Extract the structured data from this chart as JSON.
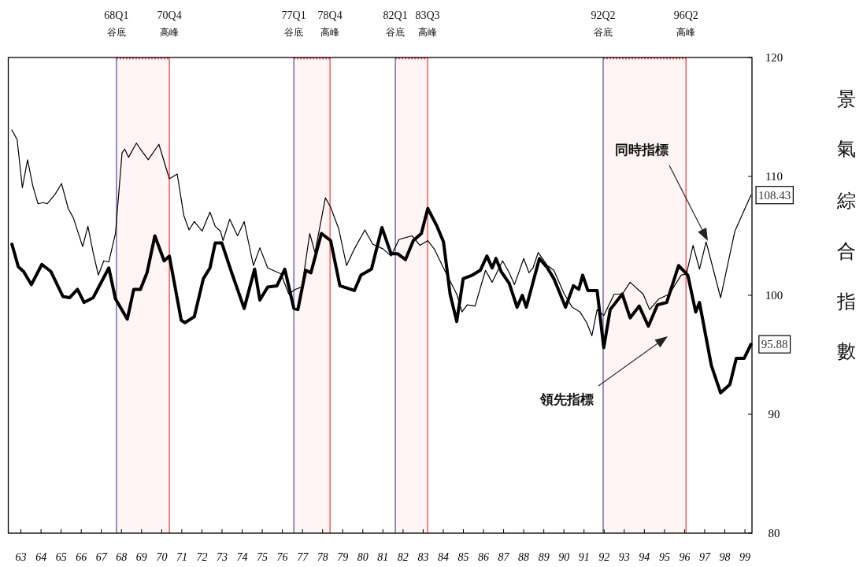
{
  "chart_data": {
    "type": "line",
    "ylabel": "景氣綜合指數",
    "xlim": [
      62.87,
      99.85
    ],
    "ylim": [
      80,
      120
    ],
    "xticks": [
      {
        "value": 63.5,
        "label": "63"
      },
      {
        "value": 64.5,
        "label": "64"
      },
      {
        "value": 65.5,
        "label": "65"
      },
      {
        "value": 66.5,
        "label": "66"
      },
      {
        "value": 67.5,
        "label": "67"
      },
      {
        "value": 68.5,
        "label": "68"
      },
      {
        "value": 69.5,
        "label": "69"
      },
      {
        "value": 70.5,
        "label": "70"
      },
      {
        "value": 71.5,
        "label": "71"
      },
      {
        "value": 72.5,
        "label": "72"
      },
      {
        "value": 73.5,
        "label": "73"
      },
      {
        "value": 74.5,
        "label": "74"
      },
      {
        "value": 75.5,
        "label": "75"
      },
      {
        "value": 76.5,
        "label": "76"
      },
      {
        "value": 77.5,
        "label": "77"
      },
      {
        "value": 78.5,
        "label": "78"
      },
      {
        "value": 79.5,
        "label": "79"
      },
      {
        "value": 80.5,
        "label": "80"
      },
      {
        "value": 81.5,
        "label": "81"
      },
      {
        "value": 82.5,
        "label": "82"
      },
      {
        "value": 83.5,
        "label": "83"
      },
      {
        "value": 84.5,
        "label": "84"
      },
      {
        "value": 85.5,
        "label": "85"
      },
      {
        "value": 86.5,
        "label": "86"
      },
      {
        "value": 87.5,
        "label": "87"
      },
      {
        "value": 88.5,
        "label": "88"
      },
      {
        "value": 89.5,
        "label": "89"
      },
      {
        "value": 90.5,
        "label": "90"
      },
      {
        "value": 91.5,
        "label": "91"
      },
      {
        "value": 92.5,
        "label": "92"
      },
      {
        "value": 93.5,
        "label": "93"
      },
      {
        "value": 94.5,
        "label": "94"
      },
      {
        "value": 95.5,
        "label": "95"
      },
      {
        "value": 96.5,
        "label": "96"
      },
      {
        "value": 97.5,
        "label": "97"
      },
      {
        "value": 98.5,
        "label": "98"
      },
      {
        "value": 99.5,
        "label": "99"
      }
    ],
    "yticks": [
      80,
      90,
      100,
      110,
      120
    ],
    "series": [
      {
        "color": "#000000",
        "x": [
          63.05,
          63.37,
          63.63,
          64.02,
          64.54,
          64.99,
          65.59,
          65.92,
          66.31,
          66.64,
          67.09,
          67.87,
          68.2,
          68.79,
          69.11,
          69.44,
          69.77,
          70.16,
          70.62,
          70.88,
          71.47,
          71.66,
          72.12,
          72.57,
          72.9,
          73.16,
          73.49,
          73.94,
          74.6,
          75.12,
          75.38,
          75.77,
          76.23,
          76.62,
          77.07,
          77.27,
          77.66,
          77.92,
          78.44,
          78.9,
          79.36,
          80.08,
          80.41,
          80.93,
          81.45,
          81.9,
          82.23,
          82.62,
          83.01,
          83.41,
          83.73,
          84.19,
          84.51,
          84.84,
          85.17,
          85.49,
          85.95,
          86.34,
          86.67,
          86.93,
          87.12,
          87.38,
          87.78,
          88.17,
          88.43,
          88.63,
          89.28,
          89.68,
          90.0,
          90.58,
          90.97,
          91.24,
          91.43,
          91.69,
          92.15,
          92.48,
          92.8,
          93.4,
          93.79,
          94.24,
          94.7,
          95.15,
          95.61,
          96.2,
          96.66,
          97.05,
          97.24,
          97.83,
          98.29,
          98.75,
          99.07,
          99.46,
          99.8
        ],
        "values": [
          104.3,
          102.4,
          102.0,
          100.9,
          102.6,
          102.0,
          99.9,
          99.8,
          100.5,
          99.4,
          99.8,
          102.3,
          99.7,
          98.0,
          100.5,
          100.5,
          101.9,
          105.0,
          102.9,
          103.3,
          97.9,
          97.7,
          98.2,
          101.4,
          102.3,
          104.4,
          104.4,
          102.1,
          98.9,
          102.2,
          99.6,
          100.7,
          100.8,
          102.2,
          98.9,
          98.8,
          102.1,
          101.9,
          105.2,
          104.6,
          100.8,
          100.4,
          101.7,
          102.2,
          105.7,
          103.5,
          103.5,
          103.0,
          104.6,
          105.2,
          107.3,
          105.8,
          104.5,
          100.1,
          97.8,
          101.4,
          101.7,
          102.1,
          103.3,
          102.3,
          103.1,
          102.0,
          101.0,
          99.0,
          100.0,
          99.0,
          103.1,
          102.3,
          101.4,
          99.0,
          100.8,
          100.5,
          101.7,
          100.4,
          100.4,
          95.6,
          98.8,
          100.1,
          98.1,
          99.1,
          97.4,
          99.2,
          99.4,
          102.5,
          101.7,
          98.6,
          99.4,
          94.1,
          91.8,
          92.5,
          94.7,
          94.7,
          95.88
        ]
      },
      {
        "color": "#000000",
        "x": [
          63.05,
          63.31,
          63.57,
          63.83,
          64.09,
          64.35,
          64.61,
          64.81,
          65.2,
          65.52,
          65.85,
          66.11,
          66.57,
          66.83,
          67.09,
          67.35,
          67.62,
          67.87,
          68.2,
          68.53,
          68.66,
          68.85,
          69.24,
          69.57,
          69.83,
          70.36,
          70.88,
          71.27,
          71.6,
          71.86,
          72.12,
          72.51,
          72.9,
          73.16,
          73.42,
          73.55,
          73.88,
          74.27,
          74.6,
          75.06,
          75.38,
          75.77,
          76.43,
          76.82,
          77.14,
          77.47,
          77.86,
          78.12,
          78.64,
          78.9,
          79.3,
          79.69,
          80.08,
          80.6,
          80.99,
          81.51,
          81.9,
          82.3,
          82.95,
          83.34,
          83.73,
          84.05,
          84.51,
          85.17,
          85.43,
          85.69,
          86.08,
          86.6,
          86.93,
          87.45,
          87.78,
          88.04,
          88.5,
          88.76,
          88.96,
          89.22,
          89.68,
          90.0,
          90.52,
          90.91,
          91.3,
          91.63,
          91.89,
          92.15,
          92.48,
          93.0,
          93.4,
          93.79,
          94.44,
          94.76,
          95.22,
          95.74,
          96.33,
          96.59,
          96.92,
          97.24,
          97.57,
          98.29,
          99.0,
          99.8
        ],
        "values": [
          113.9,
          113.1,
          109.05,
          111.4,
          109.2,
          107.7,
          107.8,
          107.7,
          108.5,
          109.4,
          107.3,
          106.5,
          104.1,
          105.8,
          103.6,
          101.7,
          102.9,
          102.8,
          105.2,
          112.0,
          112.3,
          111.6,
          112.8,
          112.0,
          111.4,
          112.7,
          109.8,
          110.2,
          106.7,
          105.5,
          106.2,
          105.4,
          107.0,
          105.8,
          105.4,
          104.6,
          106.4,
          105.0,
          106.2,
          102.5,
          104.0,
          102.3,
          101.8,
          100.1,
          100.5,
          100.7,
          105.2,
          103.6,
          108.2,
          107.4,
          105.6,
          102.5,
          103.9,
          105.5,
          104.3,
          103.9,
          103.3,
          104.7,
          105.0,
          104.2,
          104.6,
          103.9,
          102.3,
          100.1,
          98.6,
          99.2,
          99.1,
          102.1,
          101.1,
          102.9,
          101.9,
          100.9,
          103.1,
          101.9,
          102.3,
          103.6,
          102.5,
          102.1,
          100.1,
          99.0,
          98.6,
          97.7,
          96.6,
          98.8,
          98.3,
          100.1,
          100.1,
          101.1,
          100.1,
          98.8,
          99.7,
          100.1,
          101.7,
          101.8,
          104.2,
          102.2,
          104.5,
          99.8,
          105.4,
          108.43
        ]
      }
    ],
    "ref_lines": [
      {
        "axis": "x",
        "value": 68.25,
        "label": "68Q1\n谷底",
        "color": "#5a5a9e"
      },
      {
        "axis": "x",
        "value": 70.88,
        "label": "70Q4\n高峰",
        "color": "#ff4040"
      },
      {
        "axis": "x",
        "value": 77.07,
        "label": "77Q1\n谷底",
        "color": "#5a5a9e"
      },
      {
        "axis": "x",
        "value": 78.87,
        "label": "78Q4\n高峰",
        "color": "#ff4040"
      },
      {
        "axis": "x",
        "value": 82.12,
        "label": "82Q1\n谷底",
        "color": "#5a5a9e"
      },
      {
        "axis": "x",
        "value": 83.72,
        "label": "83Q3\n高峰",
        "color": "#ff4040"
      },
      {
        "axis": "x",
        "value": 92.45,
        "label": "92Q2\n谷底",
        "color": "#5a5a9e"
      },
      {
        "axis": "x",
        "value": 96.57,
        "label": "96Q2\n高峰",
        "color": "#ff4040"
      }
    ],
    "bands": [
      {
        "axis": "x",
        "from": 68.25,
        "to": 70.88,
        "color": "#ff4040"
      },
      {
        "axis": "x",
        "from": 77.07,
        "to": 78.87,
        "color": "#ff4040"
      },
      {
        "axis": "x",
        "from": 82.12,
        "to": 83.72,
        "color": "#ff4040"
      },
      {
        "axis": "x",
        "from": 92.45,
        "to": 96.57,
        "color": "#ff4040"
      }
    ],
    "annotations": [
      {
        "text": "108.43",
        "x": 99.8,
        "y": 108.43
      },
      {
        "text": "95.88",
        "x": 99.8,
        "y": 95.88
      },
      "同時指標",
      "領先指標"
    ]
  }
}
